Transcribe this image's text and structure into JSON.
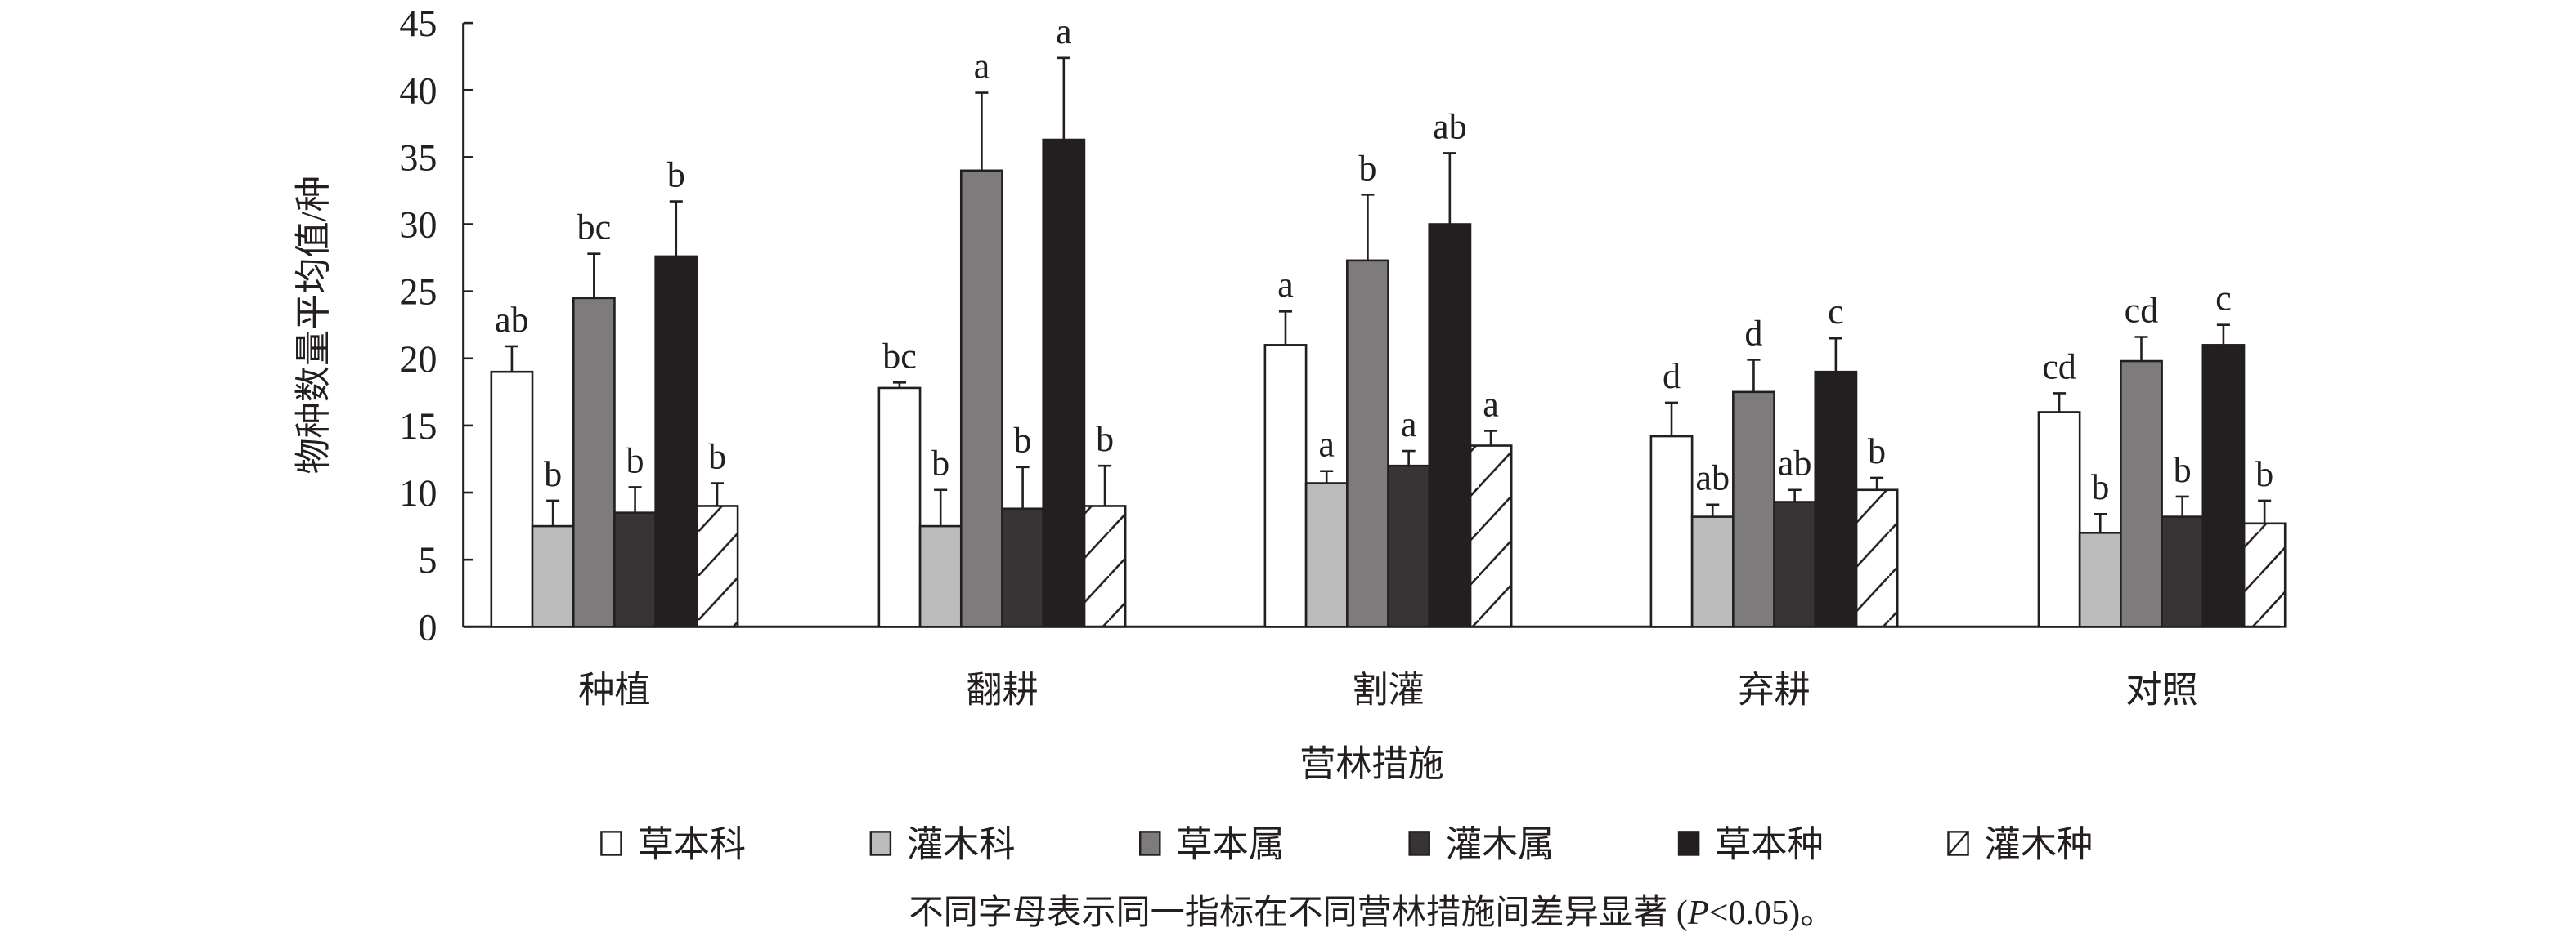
{
  "chart_data": {
    "type": "bar",
    "title": "",
    "xlabel": "营林措施",
    "ylabel": "物种数量平均值/种",
    "ylim": [
      0,
      45
    ],
    "yticks": [
      0,
      5,
      10,
      15,
      20,
      25,
      30,
      35,
      40,
      45
    ],
    "categories": [
      "种植",
      "翻耕",
      "割灌",
      "弃耕",
      "对照"
    ],
    "legend_position": "bottom",
    "series": [
      {
        "name": "草本科",
        "fill": "#ffffff",
        "pattern": "none",
        "values": [
          19.0,
          17.8,
          21.0,
          14.2,
          16.0
        ],
        "errors": [
          1.9,
          0.4,
          2.5,
          2.5,
          1.4
        ],
        "letters": [
          "ab",
          "bc",
          "a",
          "d",
          "cd"
        ]
      },
      {
        "name": "灌木科",
        "fill": "#bcbcbc",
        "pattern": "none",
        "values": [
          7.5,
          7.5,
          10.7,
          8.2,
          7.0
        ],
        "errors": [
          1.9,
          2.7,
          0.9,
          0.9,
          1.4
        ],
        "letters": [
          "b",
          "b",
          "a",
          "ab",
          "b"
        ]
      },
      {
        "name": "草本属",
        "fill": "#7d7b7c",
        "pattern": "none",
        "values": [
          24.5,
          34.0,
          27.3,
          17.5,
          19.8
        ],
        "errors": [
          3.3,
          5.8,
          4.9,
          2.4,
          1.8
        ],
        "letters": [
          "bc",
          "a",
          "b",
          "d",
          "cd"
        ]
      },
      {
        "name": "灌木属",
        "fill": "#383435",
        "pattern": "none",
        "values": [
          8.5,
          8.8,
          12.0,
          9.3,
          8.2
        ],
        "errors": [
          1.9,
          3.1,
          1.1,
          0.9,
          1.5
        ],
        "letters": [
          "b",
          "b",
          "a",
          "ab",
          "b"
        ]
      },
      {
        "name": "草本种",
        "fill": "#231f20",
        "pattern": "none",
        "values": [
          27.6,
          36.3,
          30.0,
          19.0,
          21.0
        ],
        "errors": [
          4.1,
          6.1,
          5.3,
          2.5,
          1.5
        ],
        "letters": [
          "b",
          "a",
          "ab",
          "c",
          "c"
        ]
      },
      {
        "name": "灌木种",
        "fill": "#ffffff",
        "pattern": "hatch",
        "values": [
          9.0,
          9.0,
          13.5,
          10.2,
          7.7
        ],
        "errors": [
          1.7,
          3.0,
          1.1,
          0.9,
          1.7
        ],
        "letters": [
          "b",
          "b",
          "a",
          "b",
          "b"
        ]
      }
    ],
    "note_prefix": "不同字母表示同一指标在不同营林措施间差异显著 (",
    "note_italic": "P",
    "note_suffix": "<0.05)。"
  },
  "colors": {
    "axis": "#231f20"
  }
}
